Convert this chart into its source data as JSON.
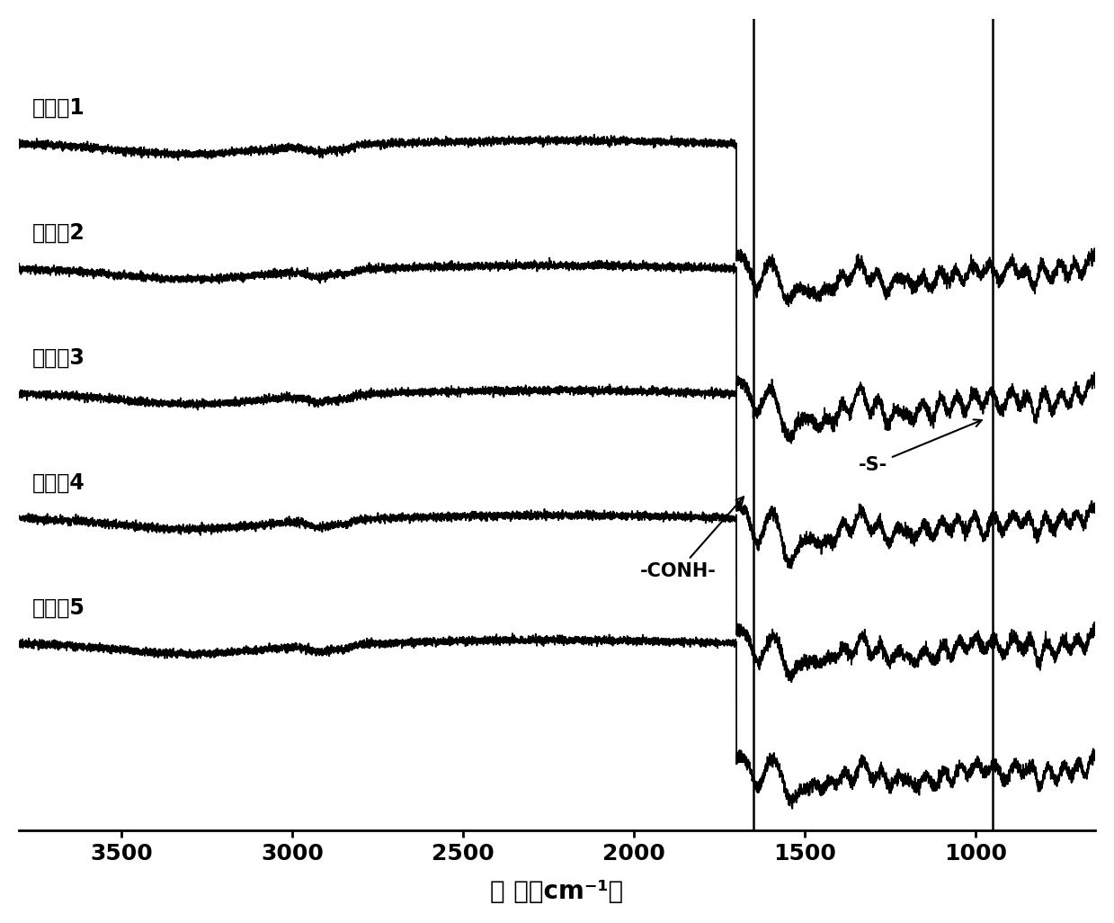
{
  "xlabel": "波 数（cm⁻¹）",
  "x_min": 3800,
  "x_max": 650,
  "x_ticks": [
    3500,
    3000,
    2500,
    2000,
    1500,
    1000
  ],
  "series_labels": [
    "实施例1",
    "实施例2",
    "实施例3",
    "实施例4",
    "实施例5"
  ],
  "n_series": 5,
  "vline1": 1650,
  "vline2": 950,
  "annotation_conh_text": "-CONH-",
  "annotation_s_text": "-S-",
  "line_color": "#000000",
  "background_color": "#ffffff",
  "offsets": [
    0.85,
    0.65,
    0.45,
    0.25,
    0.05
  ],
  "drop_depth": 0.18,
  "noise_flat": 0.003,
  "noise_finger": 0.005
}
